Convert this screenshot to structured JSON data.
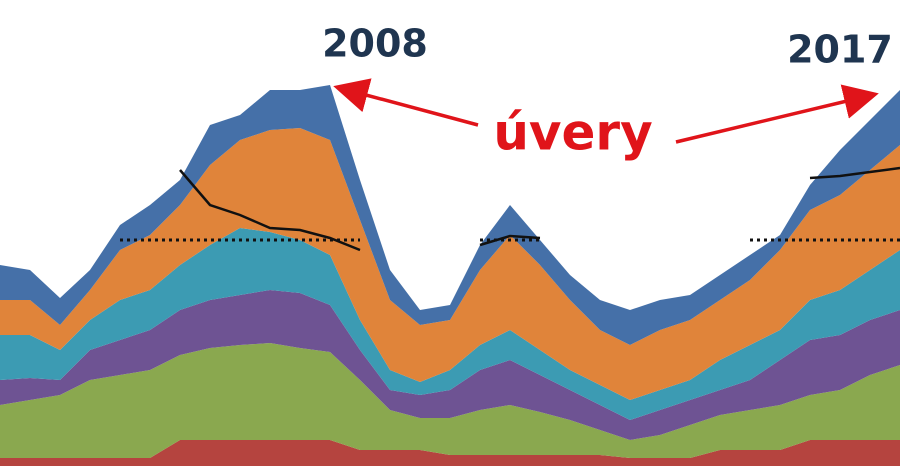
{
  "chart_data": {
    "type": "stacked_area",
    "categories": [
      null,
      null,
      null,
      null,
      null,
      null,
      null,
      null,
      null,
      null,
      null,
      null,
      null,
      null,
      null,
      null,
      null,
      null,
      null,
      null,
      null,
      null,
      null,
      null,
      null,
      null,
      null,
      null,
      null,
      null,
      null
    ],
    "ylim": [
      0,
      466
    ],
    "series": [
      {
        "color": "#b5443f",
        "values": [
          8,
          8,
          8,
          8,
          8,
          8,
          26,
          26,
          26,
          26,
          26,
          26,
          16,
          16,
          16,
          11,
          11,
          11,
          11,
          11,
          11,
          8,
          8,
          8,
          16,
          16,
          16,
          26,
          26,
          26,
          26
        ]
      },
      {
        "color": "#8aa84f",
        "values": [
          53,
          58,
          63,
          78,
          83,
          88,
          85,
          92,
          95,
          97,
          92,
          88,
          70,
          40,
          32,
          37,
          45,
          50,
          43,
          35,
          25,
          18,
          23,
          33,
          35,
          40,
          45,
          45,
          50,
          65,
          75
        ]
      },
      {
        "color": "#6e5393",
        "values": [
          25,
          22,
          15,
          30,
          35,
          40,
          45,
          48,
          50,
          53,
          55,
          47,
          30,
          20,
          23,
          28,
          40,
          45,
          37,
          30,
          25,
          20,
          25,
          25,
          25,
          30,
          45,
          55,
          55,
          55,
          55
        ]
      },
      {
        "color": "#3c9bb3",
        "values": [
          45,
          43,
          30,
          30,
          40,
          40,
          45,
          55,
          67,
          58,
          53,
          50,
          30,
          20,
          13,
          20,
          25,
          30,
          25,
          20,
          20,
          20,
          20,
          20,
          30,
          35,
          30,
          40,
          45,
          50,
          60
        ]
      },
      {
        "color": "#e0843a",
        "values": [
          35,
          35,
          25,
          30,
          50,
          55,
          60,
          80,
          88,
          102,
          112,
          115,
          100,
          70,
          57,
          50,
          75,
          95,
          85,
          70,
          55,
          55,
          60,
          60,
          60,
          65,
          80,
          90,
          95,
          100,
          105
        ]
      },
      {
        "color": "#4570a8",
        "values": [
          35,
          30,
          27,
          20,
          25,
          30,
          25,
          40,
          25,
          40,
          38,
          55,
          40,
          30,
          15,
          15,
          25,
          30,
          25,
          25,
          30,
          35,
          30,
          25,
          25,
          25,
          15,
          25,
          45,
          50,
          55
        ]
      },
      {
        "kind": "line",
        "color": "#111111",
        "values": [
          null,
          null,
          null,
          null,
          null,
          null,
          296,
          261,
          251,
          238,
          236,
          228,
          216,
          null,
          null,
          null,
          221,
          230,
          228,
          null,
          null,
          null,
          null,
          null,
          null,
          null,
          null,
          288,
          290,
          294,
          298
        ]
      },
      {
        "kind": "dotted",
        "color": "#111111",
        "values": [
          null,
          null,
          null,
          null,
          226,
          226,
          226,
          226,
          226,
          226,
          226,
          226,
          226,
          null,
          null,
          null,
          226,
          226,
          226,
          null,
          null,
          null,
          null,
          null,
          null,
          226,
          226,
          226,
          226,
          226,
          226
        ]
      }
    ],
    "annotations": [
      {
        "text": "2008",
        "color": "#1f3550"
      },
      {
        "text": "2017",
        "color": "#1f3550"
      },
      {
        "text": "úvery",
        "color": "#e0141a"
      }
    ]
  }
}
